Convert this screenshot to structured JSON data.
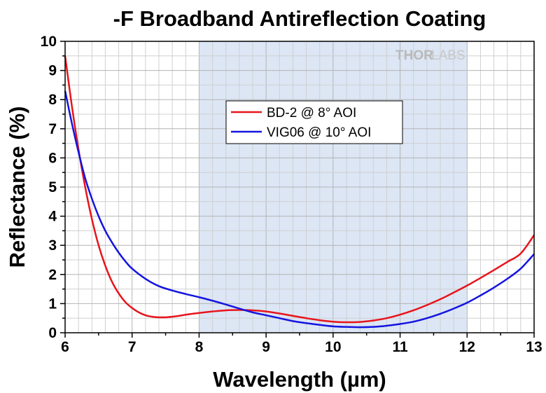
{
  "chart_data": {
    "type": "line",
    "title": "-F Broadband Antireflection Coating",
    "xlabel": "Wavelength (µm)",
    "ylabel": "Reflectance (%)",
    "xlim": [
      6,
      13
    ],
    "ylim": [
      0,
      10
    ],
    "x_ticks": [
      "6",
      "7",
      "8",
      "9",
      "10",
      "11",
      "12",
      "13"
    ],
    "y_ticks": [
      "0",
      "1",
      "2",
      "3",
      "4",
      "5",
      "6",
      "7",
      "8",
      "9",
      "10"
    ],
    "grid": true,
    "highlight_band": [
      8,
      12
    ],
    "legend_position": "top-center",
    "series": [
      {
        "name": "BD-2 @ 8° AOI",
        "color": "#e8141b",
        "x": [
          6.0,
          6.1,
          6.2,
          6.3,
          6.4,
          6.5,
          6.6,
          6.7,
          6.8,
          6.9,
          7.0,
          7.1,
          7.2,
          7.3,
          7.4,
          7.5,
          7.6,
          7.7,
          7.8,
          8.0,
          8.2,
          8.4,
          8.6,
          8.8,
          9.0,
          9.2,
          9.4,
          9.6,
          9.8,
          10.0,
          10.2,
          10.4,
          10.6,
          10.8,
          11.0,
          11.2,
          11.4,
          11.6,
          11.8,
          12.0,
          12.2,
          12.4,
          12.6,
          12.8,
          13.0
        ],
        "y": [
          9.5,
          7.8,
          6.3,
          5.0,
          3.9,
          3.0,
          2.3,
          1.75,
          1.35,
          1.05,
          0.85,
          0.7,
          0.6,
          0.55,
          0.53,
          0.53,
          0.55,
          0.58,
          0.62,
          0.68,
          0.73,
          0.77,
          0.78,
          0.77,
          0.73,
          0.66,
          0.58,
          0.5,
          0.43,
          0.38,
          0.36,
          0.37,
          0.42,
          0.5,
          0.62,
          0.77,
          0.95,
          1.15,
          1.38,
          1.62,
          1.88,
          2.15,
          2.43,
          2.72,
          3.35
        ]
      },
      {
        "name": "VIG06 @ 10° AOI",
        "color": "#1414e0",
        "x": [
          6.0,
          6.1,
          6.2,
          6.3,
          6.4,
          6.5,
          6.6,
          6.7,
          6.8,
          6.9,
          7.0,
          7.2,
          7.4,
          7.6,
          7.8,
          8.0,
          8.2,
          8.4,
          8.6,
          8.8,
          9.0,
          9.2,
          9.4,
          9.6,
          9.8,
          10.0,
          10.2,
          10.4,
          10.6,
          10.8,
          11.0,
          11.2,
          11.4,
          11.6,
          11.8,
          12.0,
          12.2,
          12.4,
          12.6,
          12.8,
          13.0
        ],
        "y": [
          8.3,
          7.2,
          6.2,
          5.3,
          4.6,
          4.0,
          3.5,
          3.1,
          2.75,
          2.45,
          2.2,
          1.85,
          1.6,
          1.45,
          1.33,
          1.22,
          1.1,
          0.97,
          0.83,
          0.7,
          0.6,
          0.5,
          0.4,
          0.33,
          0.27,
          0.22,
          0.2,
          0.19,
          0.2,
          0.24,
          0.3,
          0.38,
          0.5,
          0.65,
          0.83,
          1.03,
          1.28,
          1.55,
          1.85,
          2.2,
          2.7
        ]
      }
    ]
  },
  "watermark": {
    "thor": "THOR",
    "labs": "LABS"
  }
}
